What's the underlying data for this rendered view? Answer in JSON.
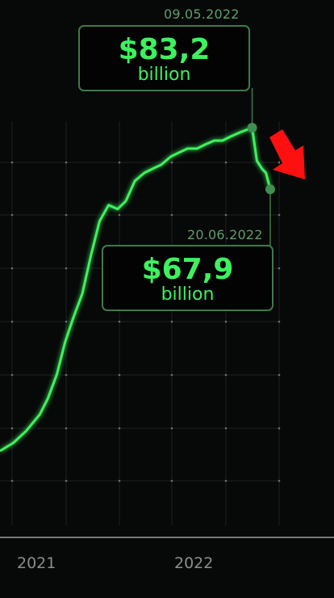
{
  "chart_data": {
    "type": "line",
    "series": [
      {
        "x": [
          "2020-10-01",
          "2020-11-01",
          "2020-12-01",
          "2021-01-01",
          "2021-01-20",
          "2021-02-10",
          "2021-03-01",
          "2021-03-20",
          "2021-04-10",
          "2021-05-01",
          "2021-05-20",
          "2021-06-10",
          "2021-07-01",
          "2021-07-20",
          "2021-08-10",
          "2021-09-01",
          "2021-09-20",
          "2021-10-10",
          "2021-11-01",
          "2021-11-20",
          "2021-12-10",
          "2022-01-01",
          "2022-01-20",
          "2022-02-10",
          "2022-03-01",
          "2022-03-20",
          "2022-04-10",
          "2022-05-09",
          "2022-05-20",
          "2022-06-01",
          "2022-06-10",
          "2022-06-20"
        ],
        "values": [
          3,
          5,
          8,
          12,
          16,
          22,
          30,
          36,
          42,
          52,
          60,
          64,
          63,
          65,
          70,
          72,
          73,
          74,
          76,
          77,
          78,
          78,
          79,
          80,
          80,
          81,
          82,
          83.2,
          75,
          73,
          72,
          67.9
        ]
      }
    ],
    "xticks": [
      "2021",
      "2022"
    ],
    "grid": true,
    "annotations": [
      {
        "date": "09.05.2022",
        "value": "$83,2",
        "unit": "billion",
        "x": "2022-05-09",
        "y": 83.2
      },
      {
        "date": "20.06.2022",
        "value": "$67,9",
        "unit": "billion",
        "x": "2022-06-20",
        "y": 67.9
      }
    ],
    "colors": {
      "line": "#3cf25e",
      "arrow": "#ff1010",
      "marker": "#3f7a4a"
    }
  }
}
